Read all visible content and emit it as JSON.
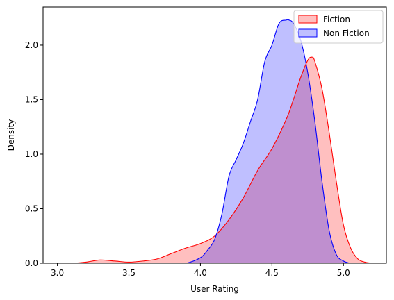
{
  "chart_data": {
    "type": "area",
    "title": "",
    "xlabel": "User Rating",
    "ylabel": "Density",
    "xlim": [
      2.9,
      5.3
    ],
    "ylim": [
      0.0,
      2.35
    ],
    "xticks": [
      "3.0",
      "3.5",
      "4.0",
      "4.5",
      "5.0"
    ],
    "yticks": [
      "0.0",
      "0.5",
      "1.0",
      "1.5",
      "2.0"
    ],
    "legend_position": "top-right",
    "grid": false,
    "series": [
      {
        "name": "Fiction",
        "color": "#ff0000",
        "fill": "#ff0000",
        "fill_opacity": 0.25,
        "x": [
          3.0,
          3.1,
          3.2,
          3.3,
          3.4,
          3.5,
          3.6,
          3.7,
          3.8,
          3.9,
          4.0,
          4.1,
          4.2,
          4.3,
          4.4,
          4.5,
          4.6,
          4.65,
          4.7,
          4.75,
          4.78,
          4.8,
          4.85,
          4.9,
          4.95,
          5.0,
          5.05,
          5.1,
          5.15,
          5.2
        ],
        "y": [
          0.0,
          0.0,
          0.01,
          0.03,
          0.02,
          0.01,
          0.02,
          0.04,
          0.09,
          0.14,
          0.18,
          0.25,
          0.4,
          0.6,
          0.85,
          1.05,
          1.32,
          1.5,
          1.7,
          1.86,
          1.89,
          1.85,
          1.6,
          1.2,
          0.75,
          0.35,
          0.14,
          0.04,
          0.01,
          0.0
        ]
      },
      {
        "name": "Non Fiction",
        "color": "#0000ff",
        "fill": "#0000ff",
        "fill_opacity": 0.25,
        "x": [
          3.8,
          3.9,
          4.0,
          4.05,
          4.1,
          4.15,
          4.2,
          4.25,
          4.3,
          4.35,
          4.4,
          4.45,
          4.5,
          4.55,
          4.6,
          4.62,
          4.65,
          4.7,
          4.75,
          4.8,
          4.85,
          4.9,
          4.95,
          5.0,
          5.05,
          5.1
        ],
        "y": [
          0.0,
          0.0,
          0.05,
          0.12,
          0.22,
          0.45,
          0.8,
          0.95,
          1.1,
          1.3,
          1.5,
          1.85,
          2.0,
          2.2,
          2.23,
          2.23,
          2.2,
          2.05,
          1.75,
          1.3,
          0.75,
          0.3,
          0.08,
          0.02,
          0.0,
          0.0
        ]
      }
    ]
  }
}
